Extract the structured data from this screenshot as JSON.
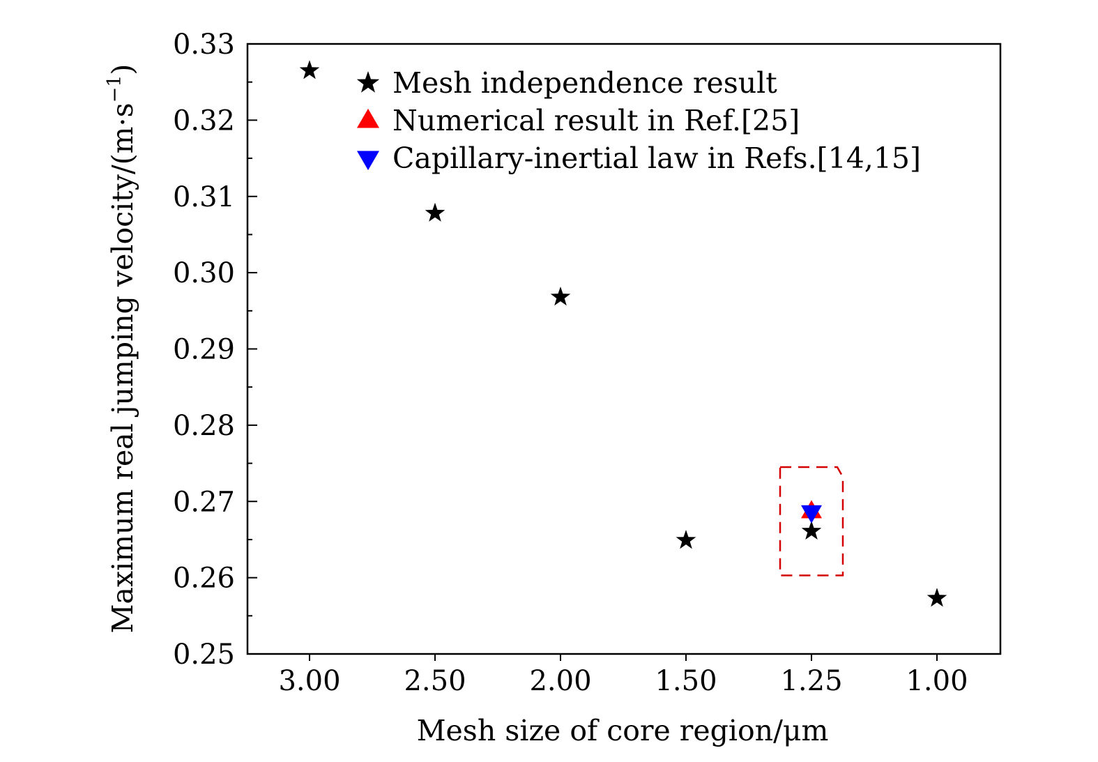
{
  "chart_data": {
    "type": "scatter",
    "xlabel": "Mesh size of core region/μm",
    "ylabel": "Maximum real jumping velocity/(m·s",
    "ylabel_exp": "−1",
    "ylabel_close": ")",
    "x_categories": [
      "3.00",
      "2.50",
      "2.00",
      "1.50",
      "1.25",
      "1.00"
    ],
    "ylim": [
      0.25,
      0.33
    ],
    "y_ticks": [
      0.25,
      0.26,
      0.27,
      0.28,
      0.29,
      0.3,
      0.31,
      0.32,
      0.33
    ],
    "y_tick_labels": [
      "0.25",
      "0.26",
      "0.27",
      "0.28",
      "0.29",
      "0.30",
      "0.31",
      "0.32",
      "0.33"
    ],
    "legend_position": "top-center",
    "series": [
      {
        "name": "Mesh independence result",
        "marker": "star",
        "color": "#000000",
        "points": [
          {
            "x": "3.00",
            "y": 0.3265
          },
          {
            "x": "2.50",
            "y": 0.3078
          },
          {
            "x": "2.00",
            "y": 0.2968
          },
          {
            "x": "1.50",
            "y": 0.2649
          },
          {
            "x": "1.25",
            "y": 0.2661
          },
          {
            "x": "1.00",
            "y": 0.2573
          }
        ]
      },
      {
        "name": "Numerical result in Ref.[25]",
        "marker": "triangle-up",
        "color": "#ff0000",
        "points": [
          {
            "x": "1.25",
            "y": 0.2687
          }
        ]
      },
      {
        "name": "Capillary-inertial law in Refs.[14,15]",
        "marker": "triangle-down",
        "color": "#0000ff",
        "points": [
          {
            "x": "1.25",
            "y": 0.2686
          }
        ]
      }
    ],
    "highlight": {
      "style": "dashed-box",
      "color": "#d40000",
      "x": "1.25",
      "y_range": [
        0.2603,
        0.2745
      ]
    }
  }
}
